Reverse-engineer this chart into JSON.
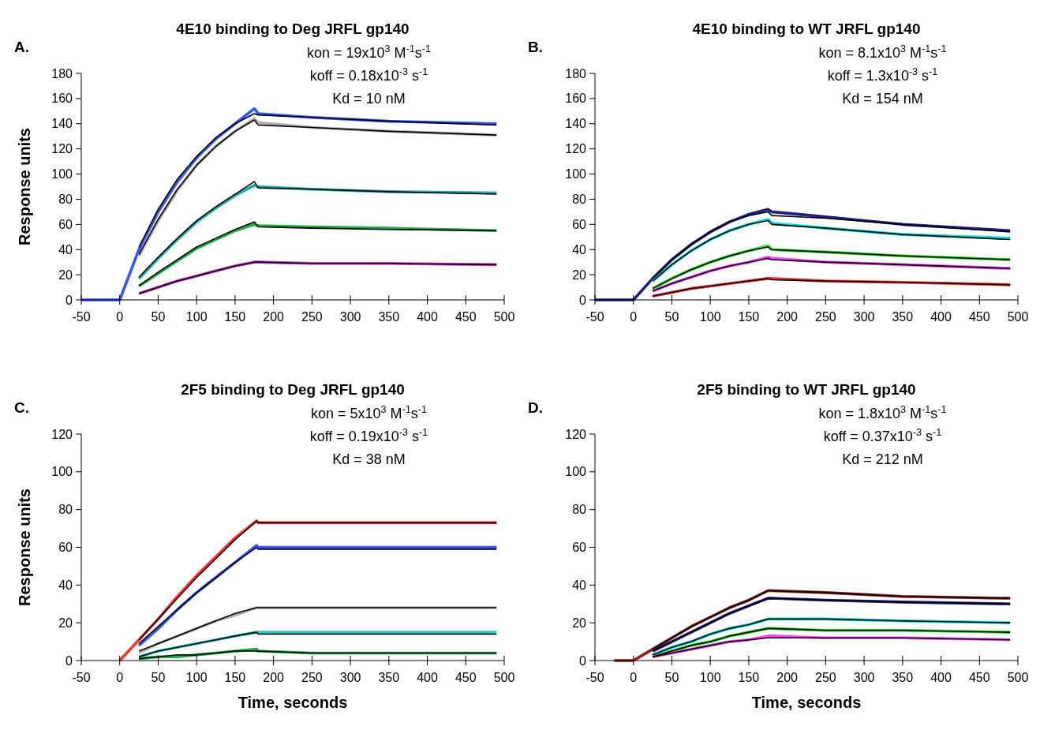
{
  "chart_data": [
    {
      "type": "line",
      "title": "4E10 binding to Deg JRFL gp140",
      "ylabel": "Response units",
      "annotations": [
        "A.",
        "kon = 19x10$^{3}$ M$^{-1}$s$^{-1}$",
        "koff = 0.18x10$^{-3}$ s$^{-1}$",
        "Kd = 10 nM"
      ],
      "xlim": [
        -50,
        500
      ],
      "xticks": [
        -50,
        0,
        50,
        100,
        150,
        200,
        250,
        300,
        350,
        400,
        450,
        500
      ],
      "ylim": [
        0,
        180
      ],
      "yticks": [
        0,
        20,
        40,
        60,
        80,
        100,
        120,
        140,
        160,
        180
      ],
      "grid": false,
      "x": [
        -50,
        -25,
        0,
        25,
        50,
        75,
        100,
        125,
        150,
        175,
        180,
        250,
        350,
        490
      ],
      "series": [
        {
          "color": "#3355ff",
          "values": [
            0,
            0,
            0,
            40,
            70,
            94,
            113,
            128,
            140,
            152,
            148,
            145,
            142,
            140
          ]
        },
        {
          "color": "#b0b0b0",
          "values": [
            null,
            null,
            null,
            35,
            63,
            87,
            107,
            122,
            134,
            144,
            141,
            137,
            134,
            131
          ]
        },
        {
          "color": "#20a8a8",
          "values": [
            null,
            null,
            null,
            17,
            33,
            48,
            62,
            73,
            83,
            91,
            90,
            88,
            86,
            85
          ]
        },
        {
          "color": "#22aa44",
          "values": [
            null,
            null,
            null,
            11,
            21,
            31,
            41,
            48,
            55,
            60,
            59,
            58,
            57,
            55
          ]
        },
        {
          "color": "#cc33cc",
          "values": [
            null,
            null,
            null,
            5,
            10,
            15,
            19,
            23,
            27,
            30,
            30,
            29,
            29,
            28
          ]
        },
        {
          "color": "#000000",
          "values": [
            null,
            null,
            null,
            42,
            72,
            96,
            114,
            129,
            140,
            148,
            147,
            145,
            142,
            139
          ]
        },
        {
          "color": "#000000",
          "values": [
            null,
            null,
            null,
            36,
            64,
            88,
            107,
            122,
            134,
            143,
            139,
            137,
            134,
            131
          ]
        },
        {
          "color": "#000000",
          "values": [
            null,
            null,
            null,
            18,
            34,
            49,
            63,
            74,
            84,
            94,
            89,
            88,
            86,
            84
          ]
        },
        {
          "color": "#000000",
          "values": [
            null,
            null,
            null,
            11,
            22,
            32,
            42,
            49,
            56,
            62,
            58,
            57,
            56,
            55
          ]
        },
        {
          "color": "#000000",
          "values": [
            null,
            null,
            null,
            5,
            10,
            15,
            19,
            23,
            27,
            30,
            30,
            29,
            29,
            28
          ]
        }
      ]
    },
    {
      "type": "line",
      "title": "4E10 binding to WT JRFL gp140",
      "annotations": [
        "B.",
        "kon = 8.1x10$^{3}$ M$^{-1}$s$^{-1}$",
        "koff = 1.3x10$^{-3}$ s$^{-1}$",
        "Kd = 154 nM"
      ],
      "xlim": [
        -50,
        500
      ],
      "xticks": [
        -50,
        0,
        50,
        100,
        150,
        200,
        250,
        300,
        350,
        400,
        450,
        500
      ],
      "ylim": [
        0,
        180
      ],
      "yticks": [
        0,
        20,
        40,
        60,
        80,
        100,
        120,
        140,
        160,
        180
      ],
      "grid": false,
      "x": [
        -50,
        -25,
        0,
        25,
        50,
        75,
        100,
        125,
        150,
        175,
        180,
        250,
        350,
        490
      ],
      "series": [
        {
          "color": "#202080",
          "values": [
            0,
            0,
            0,
            17,
            32,
            44,
            54,
            62,
            68,
            72,
            70,
            66,
            60,
            55
          ]
        },
        {
          "color": "#00dddd",
          "values": [
            null,
            null,
            null,
            15,
            28,
            39,
            48,
            55,
            60,
            64,
            61,
            57,
            52,
            49
          ]
        },
        {
          "color": "#22dd22",
          "values": [
            null,
            null,
            null,
            9,
            17,
            24,
            30,
            35,
            39,
            43,
            40,
            38,
            35,
            32
          ]
        },
        {
          "color": "#ff44ff",
          "values": [
            null,
            null,
            null,
            7,
            13,
            18,
            23,
            27,
            30,
            34,
            33,
            30,
            28,
            25
          ]
        },
        {
          "color": "#ff3333",
          "values": [
            null,
            null,
            null,
            3,
            6,
            9,
            11,
            13,
            15,
            17,
            17,
            15,
            14,
            12
          ]
        },
        {
          "color": "#000000",
          "values": [
            null,
            null,
            null,
            17,
            32,
            44,
            54,
            62,
            67,
            70,
            67,
            65,
            60,
            54
          ]
        },
        {
          "color": "#000000",
          "values": [
            null,
            null,
            null,
            15,
            28,
            39,
            48,
            55,
            60,
            63,
            60,
            57,
            52,
            48
          ]
        },
        {
          "color": "#000000",
          "values": [
            null,
            null,
            null,
            9,
            17,
            24,
            30,
            35,
            39,
            42,
            40,
            38,
            35,
            32
          ]
        },
        {
          "color": "#000000",
          "values": [
            null,
            null,
            null,
            7,
            13,
            18,
            23,
            27,
            30,
            33,
            32,
            30,
            28,
            25
          ]
        },
        {
          "color": "#000000",
          "values": [
            null,
            null,
            null,
            3,
            6,
            9,
            11,
            13,
            15,
            17,
            16,
            15,
            14,
            12
          ]
        }
      ]
    },
    {
      "type": "line",
      "title": "2F5 binding to Deg JRFL gp140",
      "xlabel": "Time, seconds",
      "ylabel": "Response units",
      "annotations": [
        "C.",
        "kon = 5x10$^{3}$ M$^{-1}$s$^{-1}$",
        "koff = 0.19x10$^{-3}$ s$^{-1}$",
        "Kd = 38 nM"
      ],
      "xlim": [
        -50,
        500
      ],
      "xticks": [
        -50,
        0,
        50,
        100,
        150,
        200,
        250,
        300,
        350,
        400,
        450,
        500
      ],
      "ylim": [
        0,
        120
      ],
      "yticks": [
        0,
        20,
        40,
        60,
        80,
        100,
        120
      ],
      "grid": false,
      "x": [
        0,
        25,
        50,
        75,
        100,
        125,
        150,
        178,
        180,
        250,
        350,
        490
      ],
      "series": [
        {
          "color": "#ff3333",
          "values": [
            0,
            11,
            22,
            34,
            45,
            55,
            65,
            74,
            73,
            73,
            73,
            73
          ]
        },
        {
          "color": "#3355ff",
          "values": [
            null,
            8,
            17,
            27,
            36,
            44,
            52,
            61,
            60,
            60,
            60,
            60
          ]
        },
        {
          "color": "#b0b0b0",
          "values": [
            null,
            4,
            9,
            13,
            17,
            21,
            24,
            28,
            28,
            28,
            28,
            28
          ]
        },
        {
          "color": "#33c4c4",
          "values": [
            null,
            2,
            5,
            7,
            9,
            11,
            13,
            15,
            15,
            15,
            15,
            15
          ]
        },
        {
          "color": "#22aa44",
          "values": [
            null,
            1,
            2,
            2,
            3,
            4,
            5,
            6,
            5,
            4,
            4,
            4
          ]
        },
        {
          "color": "#000000",
          "values": [
            null,
            11,
            22,
            33,
            44,
            54,
            64,
            74,
            73,
            73,
            73,
            73
          ]
        },
        {
          "color": "#000000",
          "values": [
            null,
            9,
            18,
            27,
            36,
            44,
            52,
            60,
            59,
            59,
            59,
            59
          ]
        },
        {
          "color": "#000000",
          "values": [
            null,
            5,
            9,
            13,
            17,
            21,
            25,
            28,
            28,
            28,
            28,
            28
          ]
        },
        {
          "color": "#000000",
          "values": [
            null,
            2,
            5,
            7,
            9,
            11,
            13,
            15,
            14,
            14,
            14,
            14
          ]
        },
        {
          "color": "#000000",
          "values": [
            null,
            1,
            2,
            3,
            3,
            4,
            5,
            5,
            5,
            4,
            4,
            4
          ]
        }
      ]
    },
    {
      "type": "line",
      "title": "2F5 binding to WT JRFL gp140",
      "xlabel": "Time, seconds",
      "annotations": [
        "D.",
        "kon = 1.8x10$^{3}$ M$^{-1}$s$^{-1}$",
        "koff = 0.37x10$^{-3}$ s$^{-1}$",
        "Kd = 212 nM"
      ],
      "xlim": [
        -50,
        500
      ],
      "xticks": [
        -50,
        0,
        50,
        100,
        150,
        200,
        250,
        300,
        350,
        400,
        450,
        500
      ],
      "ylim": [
        0,
        120
      ],
      "yticks": [
        0,
        20,
        40,
        60,
        80,
        100,
        120
      ],
      "grid": false,
      "x": [
        -25,
        0,
        25,
        50,
        75,
        100,
        125,
        150,
        175,
        180,
        250,
        350,
        490
      ],
      "series": [
        {
          "color": "#8b1a1a",
          "values": [
            0,
            0,
            6,
            12,
            18,
            23,
            28,
            32,
            37,
            37,
            36,
            34,
            33
          ]
        },
        {
          "color": "#202080",
          "values": [
            null,
            null,
            5,
            10,
            15,
            20,
            25,
            29,
            33,
            33,
            32,
            31,
            30
          ]
        },
        {
          "color": "#00dddd",
          "values": [
            null,
            null,
            3,
            7,
            10,
            14,
            17,
            19,
            22,
            22,
            22,
            21,
            20
          ]
        },
        {
          "color": "#22dd22",
          "values": [
            null,
            null,
            2,
            5,
            8,
            10,
            13,
            15,
            17,
            17,
            16,
            16,
            15
          ]
        },
        {
          "color": "#ff44ff",
          "values": [
            null,
            null,
            2,
            4,
            6,
            8,
            10,
            11,
            13,
            13,
            12,
            12,
            11
          ]
        },
        {
          "color": "#000000",
          "values": [
            null,
            null,
            6,
            12,
            18,
            23,
            28,
            32,
            37,
            37,
            36,
            34,
            33
          ]
        },
        {
          "color": "#000000",
          "values": [
            null,
            null,
            5,
            10,
            15,
            20,
            25,
            29,
            33,
            33,
            32,
            31,
            30
          ]
        },
        {
          "color": "#000000",
          "values": [
            null,
            null,
            3,
            7,
            10,
            14,
            17,
            19,
            22,
            22,
            22,
            21,
            20
          ]
        },
        {
          "color": "#000000",
          "values": [
            null,
            null,
            2,
            5,
            8,
            10,
            13,
            15,
            17,
            17,
            16,
            16,
            15
          ]
        },
        {
          "color": "#000000",
          "values": [
            null,
            null,
            2,
            4,
            6,
            8,
            10,
            11,
            12,
            12,
            12,
            12,
            11
          ]
        }
      ]
    }
  ]
}
